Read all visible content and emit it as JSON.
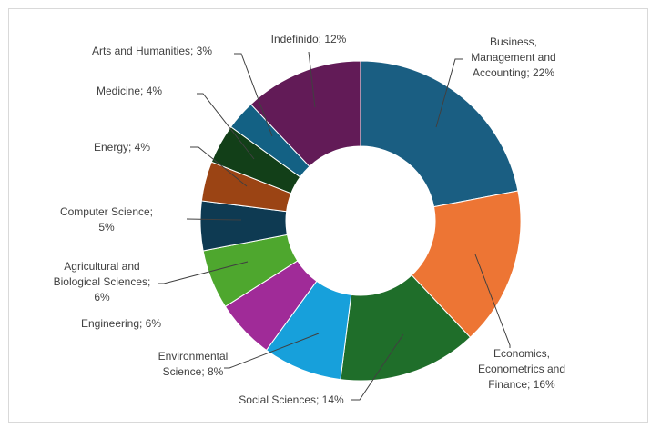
{
  "chart_data": {
    "type": "pie",
    "donut": true,
    "title": "",
    "slices": [
      {
        "lines": [
          "Business,",
          "Management and",
          "Accounting; 22%"
        ],
        "value": 22,
        "color": "#1a5e82"
      },
      {
        "lines": [
          "Economics,",
          "Econometrics and",
          "Finance; 16%"
        ],
        "value": 16,
        "color": "#ed7534"
      },
      {
        "lines": [
          "Social Sciences; 14%"
        ],
        "value": 14,
        "color": "#1f6e2a"
      },
      {
        "lines": [
          "Environmental",
          "Science; 8%"
        ],
        "value": 8,
        "color": "#17a0db"
      },
      {
        "lines": [
          "Engineering; 6%"
        ],
        "value": 6,
        "color": "#a02b98"
      },
      {
        "lines": [
          "Agricultural and",
          "Biological Sciences;",
          "6%"
        ],
        "value": 6,
        "color": "#4ea72e"
      },
      {
        "lines": [
          "Computer Science;",
          "5%"
        ],
        "value": 5,
        "color": "#0e3a52"
      },
      {
        "lines": [
          "Energy; 4%"
        ],
        "value": 4,
        "color": "#9b4414"
      },
      {
        "lines": [
          "Medicine; 4%"
        ],
        "value": 4,
        "color": "#123f18"
      },
      {
        "lines": [
          "Arts and Humanities; 3%"
        ],
        "value": 3,
        "color": "#136184"
      },
      {
        "lines": [
          "Indefinido; 12%"
        ],
        "value": 12,
        "color": "#621b57"
      }
    ]
  }
}
